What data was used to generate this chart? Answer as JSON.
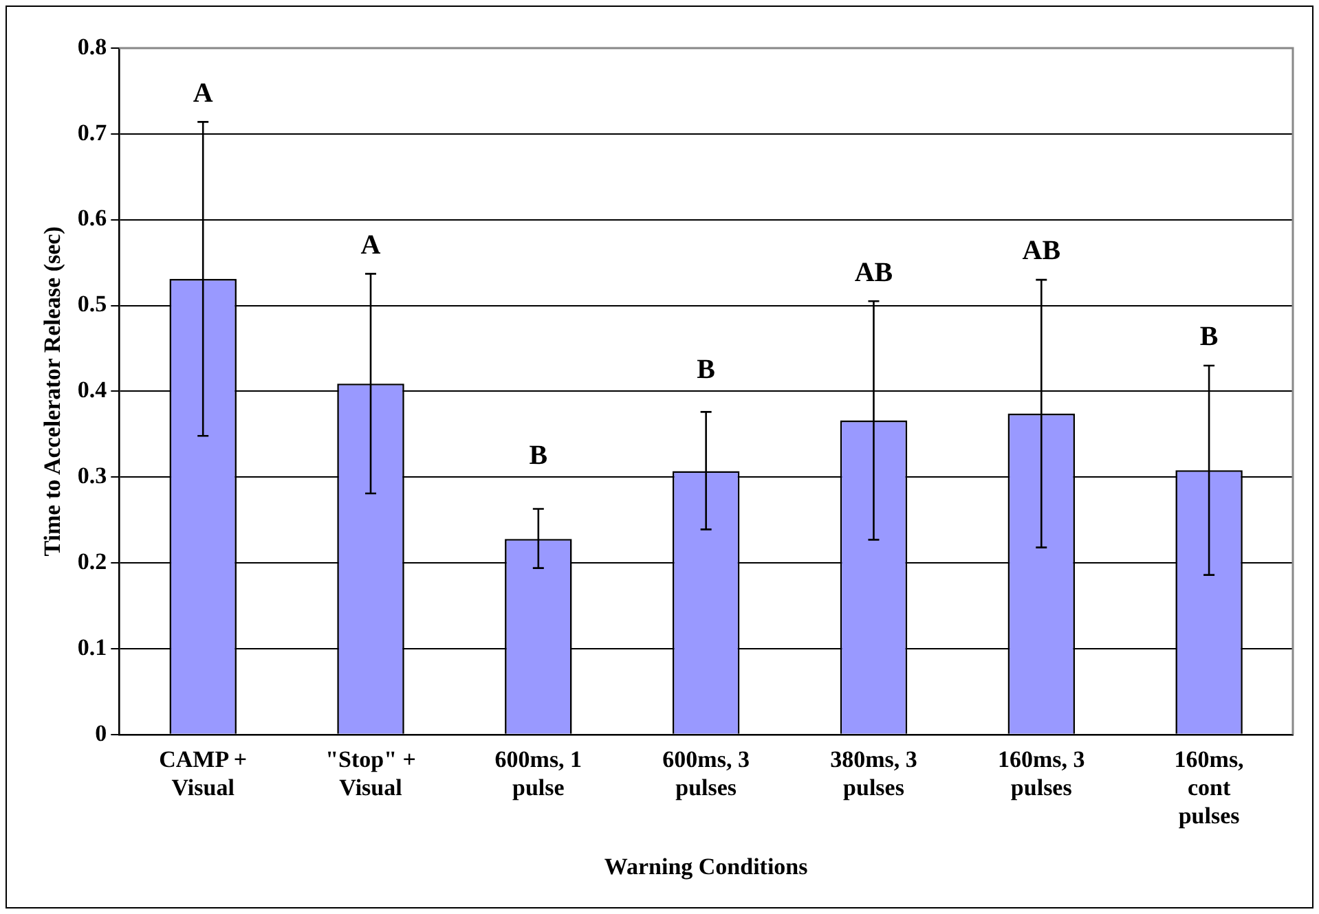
{
  "chart_data": {
    "type": "bar",
    "xlabel": "Warning Conditions",
    "ylabel": "Time to Accelerator Release (sec)",
    "categories": [
      "CAMP +\nVisual",
      "\"Stop\" +\nVisual",
      "600ms, 1\npulse",
      "600ms, 3\npulses",
      "380ms, 3\npulses",
      "160ms, 3\npulses",
      "160ms,\ncont\npulses"
    ],
    "values": [
      0.531,
      0.409,
      0.228,
      0.307,
      0.366,
      0.374,
      0.308
    ],
    "errors": [
      [
        0.348,
        0.714
      ],
      [
        0.281,
        0.537
      ],
      [
        0.194,
        0.263
      ],
      [
        0.239,
        0.376
      ],
      [
        0.227,
        0.505
      ],
      [
        0.218,
        0.53
      ],
      [
        0.186,
        0.43
      ]
    ],
    "color": "#9999ff",
    "ylim": [
      0,
      0.8
    ],
    "yticks": [
      0,
      0.1,
      0.2,
      0.3,
      0.4,
      0.5,
      0.6,
      0.7,
      0.8
    ],
    "grid": "y",
    "annotations": [
      {
        "text": "A",
        "x": "CAMP +\nVisual",
        "y": 0.714
      },
      {
        "text": "A",
        "x": "\"Stop\" +\nVisual",
        "y": 0.537
      },
      {
        "text": "B",
        "x": "600ms, 1\npulse",
        "y": 0.263
      },
      {
        "text": "B",
        "x": "600ms, 3\npulses",
        "y": 0.376
      },
      {
        "text": "AB",
        "x": "380ms, 3\npulses",
        "y": 0.505
      },
      {
        "text": "AB",
        "x": "160ms, 3\npulses",
        "y": 0.53
      },
      {
        "text": "B",
        "x": "160ms,\ncont\npulses",
        "y": 0.43
      }
    ]
  }
}
